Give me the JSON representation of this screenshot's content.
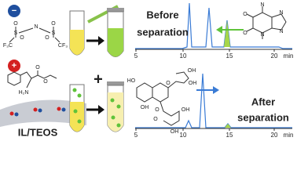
{
  "anion": {
    "charge": "−",
    "atoms": [
      "N",
      "S",
      "S",
      "O",
      "O",
      "O",
      "O",
      "F₃C",
      "CF₃"
    ]
  },
  "cation": {
    "charge": "+",
    "atoms": [
      "H₂N",
      "O",
      "O"
    ]
  },
  "support": {
    "label": "IL/TEOS"
  },
  "mixing": {
    "operator": "+"
  },
  "caffeine": {
    "atoms": [
      "N",
      "N",
      "N",
      "N",
      "O",
      "O"
    ]
  },
  "catechin": {
    "atoms": [
      "HO",
      "OH",
      "OH",
      "OH",
      "OH",
      "OH",
      "O",
      "O",
      "O"
    ]
  },
  "before": {
    "label_line1": "Before",
    "label_line2": "separation",
    "ticks": [
      5,
      10,
      15,
      20
    ],
    "unit": "min"
  },
  "after": {
    "label_line1": "After",
    "label_line2": "separation",
    "ticks": [
      5,
      10,
      15,
      20
    ],
    "unit": "min"
  }
}
